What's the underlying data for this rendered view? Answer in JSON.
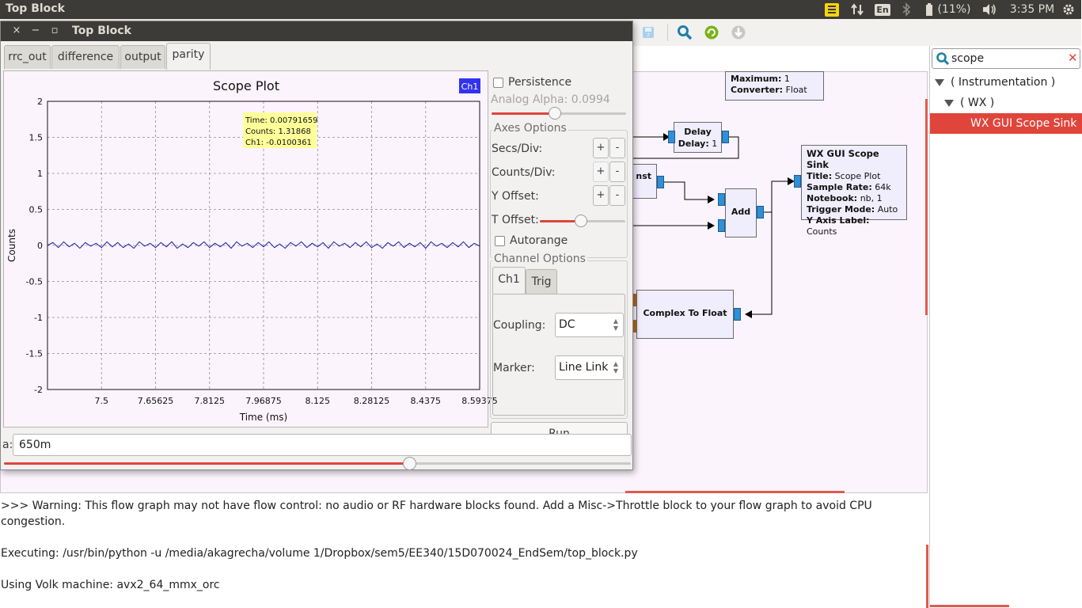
{
  "system_panel": {
    "window_title": "Top Block",
    "keyboard_layout": "En",
    "battery": "(11%)",
    "clock": "3:35 PM",
    "icons": [
      "notes-indicator-icon",
      "network-icon",
      "keyboard-icon",
      "bluetooth-icon",
      "battery-icon",
      "volume-icon",
      "session-gear-icon"
    ]
  },
  "colors": {
    "accent": "#e0453b",
    "panel_bg": "#3c3b37",
    "canvas_bg": "#fcf4fc",
    "port_blue": "#2f8fd8",
    "legend_blue": "#3333ee",
    "tooltip_bg": "#ffff99",
    "trace": "#1a1aa6"
  },
  "toolbar": {
    "icons": [
      "save-disabled-icon",
      "find-block-icon",
      "reload-icon",
      "kill-icon"
    ]
  },
  "canvas": {
    "blocks": {
      "top_params": {
        "line1_key": "Maximum:",
        "line1_val": "1",
        "line2_key": "Converter:",
        "line2_val": "Float"
      },
      "delay": {
        "title": "Delay",
        "param_key": "Delay:",
        "param_val": "1"
      },
      "const": {
        "title": "nst"
      },
      "add": {
        "title": "Add"
      },
      "scope_sink": {
        "title": "WX GUI Scope Sink",
        "params": [
          {
            "k": "Title:",
            "v": "Scope Plot"
          },
          {
            "k": "Sample Rate:",
            "v": "64k"
          },
          {
            "k": "Notebook:",
            "v": "nb, 1"
          },
          {
            "k": "Trigger Mode:",
            "v": "Auto"
          },
          {
            "k": "Y Axis Label:",
            "v": "Counts"
          }
        ]
      },
      "complex_to_float": {
        "title": "Complex To Float"
      }
    }
  },
  "console": {
    "lines": [
      ">>> Warning: This flow graph may not have flow control: no audio or RF hardware blocks found. Add a Misc->Throttle block to your flow graph to avoid CPU congestion.",
      "Executing: /usr/bin/python -u /media/akagrecha/volume 1/Dropbox/sem5/EE340/15D070024_EndSem/top_block.py",
      "Using Volk machine: avx2_64_mmx_orc"
    ]
  },
  "side": {
    "search_value": "scope",
    "clear_label": "✕",
    "tree": [
      {
        "label": "( Instrumentation )",
        "level": 0
      },
      {
        "label": "( WX )",
        "level": 1
      },
      {
        "label": "WX GUI Scope Sink",
        "level": 2,
        "selected": true
      }
    ]
  },
  "window": {
    "title": "Top Block",
    "buttons": {
      "close": "×",
      "minimize": "−",
      "maximize": "▫"
    },
    "tabs": [
      {
        "label": "rrc_out",
        "active": false
      },
      {
        "label": "difference",
        "active": false
      },
      {
        "label": "output",
        "active": false
      },
      {
        "label": "parity",
        "active": true
      }
    ],
    "entry_label": "a:",
    "entry_value": "650m",
    "entry_slider_fraction": 0.65
  },
  "controls": {
    "persistence_label": "Persistence",
    "persistence_checked": false,
    "analog_alpha_label": "Analog Alpha: 0.0994",
    "analog_alpha_fraction": 0.47,
    "axes_options_title": "Axes Options",
    "secs_div_label": "Secs/Div:",
    "counts_div_label": "Counts/Div:",
    "y_offset_label": "Y Offset:",
    "plus": "+",
    "minus": "-",
    "t_offset_label": "T Offset:",
    "t_offset_fraction": 0.48,
    "autorange_label": "Autorange",
    "autorange_checked": false,
    "channel_options_title": "Channel Options",
    "channel_tabs": [
      "Ch1",
      "Trig"
    ],
    "coupling_label": "Coupling:",
    "coupling_value": "DC",
    "marker_label": "Marker:",
    "marker_value": "Line Link",
    "run_label": "Run"
  },
  "chart_data": {
    "type": "line",
    "title": "Scope Plot",
    "xlabel": "Time (ms)",
    "ylabel": "Counts",
    "xlim": [
      7.34375,
      8.59375
    ],
    "ylim": [
      -2,
      2
    ],
    "x_ticks": [
      7.5,
      7.65625,
      7.8125,
      7.96875,
      8.125,
      8.28125,
      8.4375,
      8.59375
    ],
    "x_tick_labels": [
      "7.5",
      "7.65625",
      "7.8125",
      "7.96875",
      "8.125",
      "8.28125",
      "8.4375",
      "8.59375"
    ],
    "y_ticks": [
      2,
      1.5,
      1,
      0.5,
      0,
      -0.5,
      -1,
      -1.5,
      -2
    ],
    "y_tick_labels": [
      "2",
      "1.5",
      "1",
      "0.5",
      "0",
      "-0.5",
      "-1",
      "-1.5",
      "-2"
    ],
    "grid": true,
    "legend": {
      "position": "top-right"
    },
    "series": [
      {
        "name": "Ch1",
        "color": "#1a1aa6",
        "x": [
          7.34375,
          7.359375,
          7.375,
          7.390625,
          7.40625,
          7.421875,
          7.4375,
          7.453125,
          7.46875,
          7.484375,
          7.5,
          7.515625,
          7.53125,
          7.546875,
          7.5625,
          7.578125,
          7.59375,
          7.609375,
          7.625,
          7.640625,
          7.65625,
          7.671875,
          7.6875,
          7.703125,
          7.71875,
          7.734375,
          7.75,
          7.765625,
          7.78125,
          7.796875,
          7.8125,
          7.828125,
          7.84375,
          7.859375,
          7.875,
          7.890625,
          7.90625,
          7.921875,
          7.9375,
          7.953125,
          7.96875,
          7.984375,
          8.0,
          8.015625,
          8.03125,
          8.046875,
          8.0625,
          8.078125,
          8.09375,
          8.109375,
          8.125,
          8.140625,
          8.15625,
          8.171875,
          8.1875,
          8.203125,
          8.21875,
          8.234375,
          8.25,
          8.265625,
          8.28125,
          8.296875,
          8.3125,
          8.328125,
          8.34375,
          8.359375,
          8.375,
          8.390625,
          8.40625,
          8.421875,
          8.4375,
          8.453125,
          8.46875,
          8.484375,
          8.5,
          8.515625,
          8.53125,
          8.546875,
          8.5625,
          8.578125,
          8.59375
        ],
        "y": [
          0.0,
          0.04,
          -0.03,
          0.05,
          -0.02,
          0.03,
          -0.04,
          0.04,
          -0.01,
          0.03,
          -0.03,
          0.05,
          -0.02,
          0.04,
          -0.03,
          0.02,
          -0.04,
          0.05,
          -0.01,
          0.03,
          -0.03,
          0.04,
          -0.02,
          0.05,
          -0.04,
          0.02,
          -0.03,
          0.04,
          -0.01,
          0.05,
          -0.03,
          0.03,
          -0.02,
          0.04,
          -0.04,
          0.05,
          -0.01,
          0.03,
          -0.03,
          0.04,
          -0.02,
          0.05,
          -0.03,
          0.02,
          -0.04,
          0.04,
          -0.01,
          0.05,
          -0.03,
          0.03,
          -0.02,
          0.04,
          -0.04,
          0.05,
          -0.01,
          0.03,
          -0.03,
          0.04,
          -0.02,
          0.05,
          -0.03,
          0.02,
          -0.04,
          0.04,
          -0.01,
          0.05,
          -0.03,
          0.03,
          -0.02,
          0.04,
          -0.04,
          0.05,
          -0.01,
          0.03,
          -0.03,
          0.04,
          -0.02,
          0.05,
          -0.03,
          0.03,
          -0.01
        ]
      }
    ],
    "tooltip": {
      "time": "Time: 0.00791659",
      "counts": "Counts: 1.31868",
      "ch1": "Ch1: -0.0100361"
    }
  }
}
